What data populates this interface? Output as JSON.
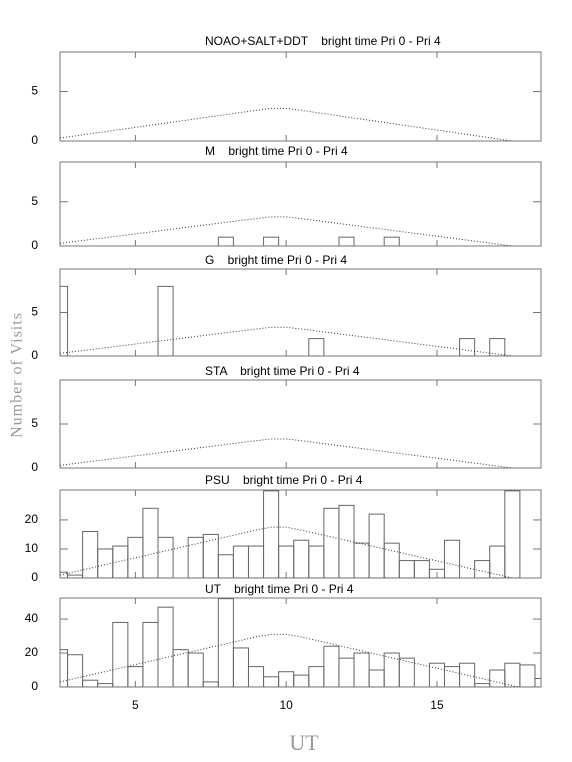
{
  "shared": {
    "xlabel": "UT",
    "ylabel": "Number of Visits"
  },
  "chart_data": [
    {
      "type": "histogram",
      "title": "NOAO+SALT+DDT    bright time Pri 0 - Pri 4",
      "bins": [
        2.25,
        2.75,
        3.25,
        3.75,
        4.25,
        4.75,
        5.25,
        5.75,
        6.25,
        6.75,
        7.25,
        7.75,
        8.25,
        8.75,
        9.25,
        9.75,
        10.25,
        10.75,
        11.25,
        11.75,
        12.25,
        12.75,
        13.25,
        13.75,
        14.25,
        14.75,
        15.25,
        15.75,
        16.25,
        16.75,
        17.25,
        17.75,
        18.25,
        18.75
      ],
      "values": [
        0,
        0,
        0,
        0,
        0,
        0,
        0,
        0,
        0,
        0,
        0,
        0,
        0,
        0,
        0,
        0,
        0,
        0,
        0,
        0,
        0,
        0,
        0,
        0,
        0,
        0,
        0,
        0,
        0,
        0,
        0,
        0,
        0
      ],
      "expected_x": [
        2.5,
        9,
        9.5,
        10,
        10.5,
        17.5
      ],
      "expected": [
        0.3,
        3.1,
        3.3,
        3.3,
        3.1,
        0
      ],
      "xlim": [
        2.5,
        18.45
      ],
      "xticks": [
        5,
        10,
        15
      ],
      "ylim": [
        0,
        9
      ],
      "yticks": [
        0,
        5
      ]
    },
    {
      "type": "histogram",
      "title": "M    bright time Pri 0 - Pri 4",
      "bins": [
        2.25,
        2.75,
        3.25,
        3.75,
        4.25,
        4.75,
        5.25,
        5.75,
        6.25,
        6.75,
        7.25,
        7.75,
        8.25,
        8.75,
        9.25,
        9.75,
        10.25,
        10.75,
        11.25,
        11.75,
        12.25,
        12.75,
        13.25,
        13.75,
        14.25,
        14.75,
        15.25,
        15.75,
        16.25,
        16.75,
        17.25,
        17.75,
        18.25,
        18.75
      ],
      "values": [
        0,
        0,
        0,
        0,
        0,
        0,
        0,
        0,
        0,
        0,
        0,
        1,
        0,
        0,
        1,
        0,
        0,
        0,
        0,
        1,
        0,
        0,
        1,
        0,
        0,
        0,
        0,
        0,
        0,
        0,
        0,
        0,
        0
      ],
      "expected_x": [
        2.5,
        9,
        9.5,
        10,
        10.5,
        17.5
      ],
      "expected": [
        0.3,
        3.1,
        3.3,
        3.3,
        3.1,
        0
      ],
      "xlim": [
        2.5,
        18.45
      ],
      "xticks": [
        5,
        10,
        15
      ],
      "ylim": [
        0,
        9.5
      ],
      "yticks": [
        0,
        5
      ]
    },
    {
      "type": "histogram",
      "title": "G    bright time Pri 0 - Pri 4",
      "bins": [
        2.25,
        2.75,
        3.25,
        3.75,
        4.25,
        4.75,
        5.25,
        5.75,
        6.25,
        6.75,
        7.25,
        7.75,
        8.25,
        8.75,
        9.25,
        9.75,
        10.25,
        10.75,
        11.25,
        11.75,
        12.25,
        12.75,
        13.25,
        13.75,
        14.25,
        14.75,
        15.25,
        15.75,
        16.25,
        16.75,
        17.25,
        17.75,
        18.25,
        18.75
      ],
      "values": [
        8,
        0,
        0,
        0,
        0,
        0,
        0,
        8,
        0,
        0,
        0,
        0,
        0,
        0,
        0,
        0,
        0,
        2,
        0,
        0,
        0,
        0,
        0,
        0,
        0,
        0,
        0,
        2,
        0,
        2,
        0,
        0,
        0
      ],
      "expected_x": [
        2.5,
        9,
        9.5,
        10,
        10.5,
        17.5
      ],
      "expected": [
        0.3,
        3.1,
        3.3,
        3.3,
        3.1,
        0
      ],
      "xlim": [
        2.5,
        18.45
      ],
      "xticks": [
        5,
        10,
        15
      ],
      "ylim": [
        0,
        10
      ],
      "yticks": [
        0,
        5
      ]
    },
    {
      "type": "histogram",
      "title": "STA    bright time Pri 0 - Pri 4",
      "bins": [
        2.25,
        2.75,
        3.25,
        3.75,
        4.25,
        4.75,
        5.25,
        5.75,
        6.25,
        6.75,
        7.25,
        7.75,
        8.25,
        8.75,
        9.25,
        9.75,
        10.25,
        10.75,
        11.25,
        11.75,
        12.25,
        12.75,
        13.25,
        13.75,
        14.25,
        14.75,
        15.25,
        15.75,
        16.25,
        16.75,
        17.25,
        17.75,
        18.25,
        18.75
      ],
      "values": [
        0,
        0,
        0,
        0,
        0,
        0,
        0,
        0,
        0,
        0,
        0,
        0,
        0,
        0,
        0,
        0,
        0,
        0,
        0,
        0,
        0,
        0,
        0,
        0,
        0,
        0,
        0,
        0,
        0,
        0,
        0,
        0,
        0
      ],
      "expected_x": [
        2.5,
        9,
        9.5,
        10,
        10.5,
        17.5
      ],
      "expected": [
        0.3,
        3.1,
        3.3,
        3.3,
        3.1,
        0
      ],
      "xlim": [
        2.5,
        18.45
      ],
      "xticks": [
        5,
        10,
        15
      ],
      "ylim": [
        0,
        10
      ],
      "yticks": [
        0,
        5
      ]
    },
    {
      "type": "histogram",
      "title": "PSU    bright time Pri 0 - Pri 4",
      "bins": [
        2.25,
        2.75,
        3.25,
        3.75,
        4.25,
        4.75,
        5.25,
        5.75,
        6.25,
        6.75,
        7.25,
        7.75,
        8.25,
        8.75,
        9.25,
        9.75,
        10.25,
        10.75,
        11.25,
        11.75,
        12.25,
        12.75,
        13.25,
        13.75,
        14.25,
        14.75,
        15.25,
        15.75,
        16.25,
        16.75,
        17.25,
        17.75,
        18.25,
        18.75
      ],
      "values": [
        2,
        1,
        16,
        10,
        11,
        14,
        24,
        14,
        0,
        14,
        15,
        8,
        11,
        11,
        30,
        11,
        13,
        11,
        24,
        25,
        12,
        22,
        12,
        6,
        6,
        3,
        13,
        0,
        6,
        11,
        30,
        0,
        0
      ],
      "expected_x": [
        2.5,
        9,
        9.5,
        10,
        10.5,
        17.5
      ],
      "expected": [
        1,
        16.5,
        17.5,
        17.5,
        16.5,
        0
      ],
      "xlim": [
        2.5,
        18.45
      ],
      "xticks": [
        5,
        10,
        15
      ],
      "ylim": [
        0,
        30.3
      ],
      "yticks": [
        0,
        10,
        20
      ]
    },
    {
      "type": "histogram",
      "title": "UT    bright time Pri 0 - Pri 4",
      "bins": [
        2.25,
        2.75,
        3.25,
        3.75,
        4.25,
        4.75,
        5.25,
        5.75,
        6.25,
        6.75,
        7.25,
        7.75,
        8.25,
        8.75,
        9.25,
        9.75,
        10.25,
        10.75,
        11.25,
        11.75,
        12.25,
        12.75,
        13.25,
        13.75,
        14.25,
        14.75,
        15.25,
        15.75,
        16.25,
        16.75,
        17.25,
        17.75,
        18.25,
        18.75
      ],
      "values": [
        22,
        19,
        4,
        2,
        38,
        12,
        38,
        47,
        22,
        20,
        3,
        52,
        23,
        12,
        6,
        9,
        7,
        12,
        24,
        17,
        20,
        10,
        20,
        17,
        0,
        14,
        12,
        14,
        2,
        10,
        14,
        13,
        5
      ],
      "expected_x": [
        2.5,
        9,
        9.5,
        10,
        10.5,
        17.7
      ],
      "expected": [
        3,
        29.5,
        31,
        31,
        29.5,
        0
      ],
      "xlim": [
        2.5,
        18.45
      ],
      "xticks": [
        5,
        10,
        15
      ],
      "ylim": [
        0,
        52.4
      ],
      "yticks": [
        0,
        20,
        40
      ]
    }
  ]
}
